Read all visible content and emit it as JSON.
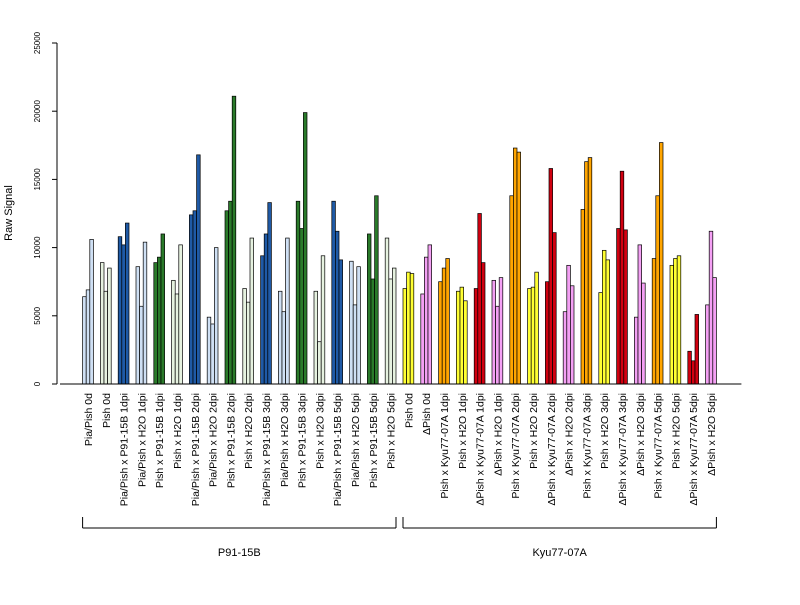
{
  "chart_data": {
    "type": "bar",
    "ylabel": "Raw Signal",
    "ylim": [
      0,
      25000
    ],
    "yticks": [
      0,
      5000,
      10000,
      15000,
      20000,
      25000
    ],
    "grid": false,
    "legend": "none",
    "colors": {
      "light_blue": "#cfe0f4",
      "dark_blue": "#1f5aa6",
      "light_green": "#e6f2e0",
      "dark_green": "#2a7a2a",
      "yellow": "#ffff33",
      "pink": "#f4a0f4",
      "orange": "#ffa500",
      "red": "#d10010"
    },
    "groups": [
      {
        "label": "Pia/Pish 0d",
        "color": "light_blue",
        "values": [
          6400,
          6900,
          10600
        ]
      },
      {
        "label": "Pish 0d",
        "color": "light_green",
        "values": [
          8900,
          6800,
          8500
        ]
      },
      {
        "label": "Pia/Pish x P91-15B 1dpi",
        "color": "dark_blue",
        "values": [
          10800,
          10200,
          11800
        ]
      },
      {
        "label": "Pia/Pish x H2O 1dpi",
        "color": "light_blue",
        "values": [
          8600,
          5700,
          10400
        ]
      },
      {
        "label": "Pish x P91-15B 1dpi",
        "color": "dark_green",
        "values": [
          8900,
          9300,
          11000
        ]
      },
      {
        "label": "Pish x H2O 1dpi",
        "color": "light_green",
        "values": [
          7600,
          6600,
          10200
        ]
      },
      {
        "label": "Pia/Pish x P91-15B 2dpi",
        "color": "dark_blue",
        "values": [
          12400,
          12700,
          16800
        ]
      },
      {
        "label": "Pia/Pish x H2O 2dpi",
        "color": "light_blue",
        "values": [
          4900,
          4400,
          10000
        ]
      },
      {
        "label": "Pish x P91-15B 2dpi",
        "color": "dark_green",
        "values": [
          12700,
          13400,
          21100
        ]
      },
      {
        "label": "Pish x H2O 2dpi",
        "color": "light_green",
        "values": [
          7000,
          6000,
          10700
        ]
      },
      {
        "label": "Pia/Pish x P91-15B 3dpi",
        "color": "dark_blue",
        "values": [
          9400,
          11000,
          13300
        ]
      },
      {
        "label": "Pia/Pish x H2O 3dpi",
        "color": "light_blue",
        "values": [
          6800,
          5300,
          10700
        ]
      },
      {
        "label": "Pish x P91-15B 3dpi",
        "color": "dark_green",
        "values": [
          13400,
          11400,
          19900
        ]
      },
      {
        "label": "Pish x H2O 3dpi",
        "color": "light_green",
        "values": [
          6800,
          3100,
          9400
        ]
      },
      {
        "label": "Pia/Pish x P91-15B 5dpi",
        "color": "dark_blue",
        "values": [
          13400,
          11200,
          9100
        ]
      },
      {
        "label": "Pia/Pish x H2O 5dpi",
        "color": "light_blue",
        "values": [
          9000,
          5800,
          8600
        ]
      },
      {
        "label": "Pish x P91-15B 5dpi",
        "color": "dark_green",
        "values": [
          11000,
          7700,
          13800
        ]
      },
      {
        "label": "Pish x H2O 5dpi",
        "color": "light_green",
        "values": [
          10700,
          7700,
          8500
        ]
      },
      {
        "label": "Pish 0d",
        "color": "yellow",
        "values": [
          7000,
          8200,
          8100
        ]
      },
      {
        "label": "ΔPish 0d",
        "color": "pink",
        "values": [
          6600,
          9300,
          10200
        ]
      },
      {
        "label": "Pish x Kyu77-07A 1dpi",
        "color": "orange",
        "values": [
          7500,
          8500,
          9200
        ]
      },
      {
        "label": "Pish x H2O 1dpi",
        "color": "yellow",
        "values": [
          6800,
          7100,
          6100
        ]
      },
      {
        "label": "ΔPish x Kyu77-07A 1dpi",
        "color": "red",
        "values": [
          7000,
          12500,
          8900
        ]
      },
      {
        "label": "ΔPish x H2O 1dpi",
        "color": "pink",
        "values": [
          7600,
          5700,
          7800
        ]
      },
      {
        "label": "Pish x Kyu77-07A 2dpi",
        "color": "orange",
        "values": [
          13800,
          17300,
          17000
        ]
      },
      {
        "label": "Pish x H2O 2dpi",
        "color": "yellow",
        "values": [
          7000,
          7100,
          8200
        ]
      },
      {
        "label": "ΔPish x Kyu77-07A 2dpi",
        "color": "red",
        "values": [
          7500,
          15800,
          11100
        ]
      },
      {
        "label": "ΔPish x H2O 2dpi",
        "color": "pink",
        "values": [
          5300,
          8700,
          7200
        ]
      },
      {
        "label": "Pish x Kyu77-07A 3dpi",
        "color": "orange",
        "values": [
          12800,
          16300,
          16600
        ]
      },
      {
        "label": "Pish x H2O 3dpi",
        "color": "yellow",
        "values": [
          6700,
          9800,
          9100
        ]
      },
      {
        "label": "ΔPish x Kyu77-07A 3dpi",
        "color": "red",
        "values": [
          11400,
          15600,
          11300
        ]
      },
      {
        "label": "ΔPish x H2O 3dpi",
        "color": "pink",
        "values": [
          4900,
          10200,
          7400
        ]
      },
      {
        "label": "Pish x Kyu77-07A 5dpi",
        "color": "orange",
        "values": [
          9200,
          13800,
          17700
        ]
      },
      {
        "label": "Pish x H2O 5dpi",
        "color": "yellow",
        "values": [
          8700,
          9200,
          9400
        ]
      },
      {
        "label": "ΔPish x Kyu77-07A 5dpi",
        "color": "red",
        "values": [
          2400,
          1700,
          5100
        ]
      },
      {
        "label": "ΔPish x H2O 5dpi",
        "color": "pink",
        "values": [
          5800,
          11200,
          7800
        ]
      }
    ],
    "brackets": [
      {
        "label": "P91-15B",
        "from_group": 0,
        "to_group": 17
      },
      {
        "label": "Kyu77-07A",
        "from_group": 18,
        "to_group": 35
      }
    ]
  }
}
